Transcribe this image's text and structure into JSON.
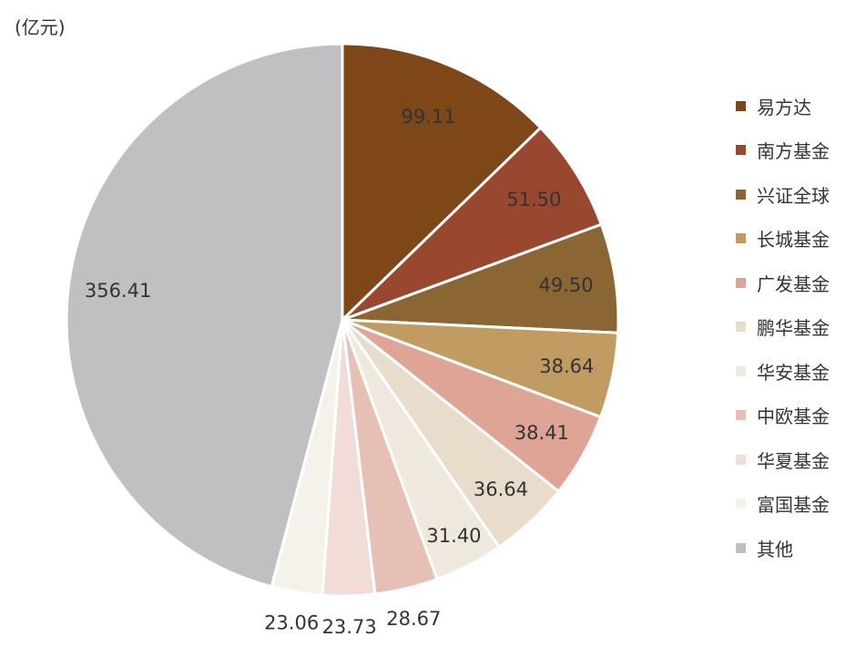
{
  "chart_data": {
    "type": "pie",
    "unit": "(亿元)",
    "categories": [
      "易方达",
      "南方基金",
      "兴证全球",
      "长城基金",
      "广发基金",
      "鹏华基金",
      "华安基金",
      "中欧基金",
      "华夏基金",
      "富国基金",
      "其他"
    ],
    "values": [
      99.11,
      51.5,
      49.5,
      38.64,
      38.41,
      36.64,
      31.4,
      28.67,
      23.73,
      23.06,
      356.41
    ],
    "labels": [
      "99.11",
      "51.50",
      "49.50",
      "38.64",
      "38.41",
      "36.64",
      "31.40",
      "28.67",
      "23.73",
      "23.06",
      "356.41"
    ],
    "colors": [
      "#7d4717",
      "#9a4730",
      "#896633",
      "#c09b62",
      "#dea596",
      "#e8dccb",
      "#eee8de",
      "#e7c0b5",
      "#f1dcd7",
      "#f5f2ea",
      "#c0c0c2"
    ],
    "legend": "right"
  }
}
